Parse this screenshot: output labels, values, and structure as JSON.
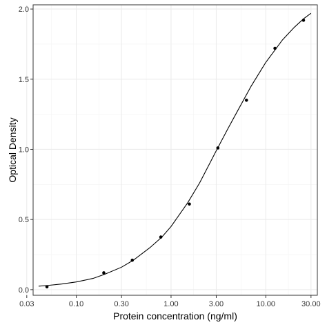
{
  "chart_data": {
    "type": "scatter",
    "xlabel": "Protein concentration (ng/ml)",
    "ylabel": "Optical Density",
    "x_scale": "log",
    "xlim": [
      0.035,
      35
    ],
    "ylim": [
      -0.04,
      2.03
    ],
    "grid": true,
    "x_ticks": [
      {
        "value": 0.03,
        "label": "0.03"
      },
      {
        "value": 0.1,
        "label": "0.10"
      },
      {
        "value": 0.3,
        "label": "0.30"
      },
      {
        "value": 1,
        "label": "1.00"
      },
      {
        "value": 3,
        "label": "3.00"
      },
      {
        "value": 10,
        "label": "10.00"
      },
      {
        "value": 30,
        "label": "30.00"
      }
    ],
    "y_ticks": [
      {
        "value": 0.0,
        "label": "0.0"
      },
      {
        "value": 0.5,
        "label": "0.5"
      },
      {
        "value": 1.0,
        "label": "1.0"
      },
      {
        "value": 1.5,
        "label": "1.5"
      },
      {
        "value": 2.0,
        "label": "2.0"
      }
    ],
    "points": [
      {
        "x": 0.049,
        "y": 0.02
      },
      {
        "x": 0.195,
        "y": 0.12
      },
      {
        "x": 0.39,
        "y": 0.21
      },
      {
        "x": 0.78,
        "y": 0.375
      },
      {
        "x": 1.56,
        "y": 0.61
      },
      {
        "x": 3.12,
        "y": 1.01
      },
      {
        "x": 6.25,
        "y": 1.35
      },
      {
        "x": 12.5,
        "y": 1.72
      },
      {
        "x": 25,
        "y": 1.92
      }
    ],
    "fit_curve": [
      {
        "x": 0.04,
        "y": 0.025
      },
      {
        "x": 0.05,
        "y": 0.03
      },
      {
        "x": 0.07,
        "y": 0.04
      },
      {
        "x": 0.1,
        "y": 0.055
      },
      {
        "x": 0.15,
        "y": 0.08
      },
      {
        "x": 0.2,
        "y": 0.11
      },
      {
        "x": 0.3,
        "y": 0.16
      },
      {
        "x": 0.4,
        "y": 0.21
      },
      {
        "x": 0.6,
        "y": 0.3
      },
      {
        "x": 0.8,
        "y": 0.375
      },
      {
        "x": 1.0,
        "y": 0.45
      },
      {
        "x": 1.5,
        "y": 0.62
      },
      {
        "x": 2.0,
        "y": 0.76
      },
      {
        "x": 3.0,
        "y": 0.99
      },
      {
        "x": 4.0,
        "y": 1.15
      },
      {
        "x": 5.0,
        "y": 1.27
      },
      {
        "x": 7.0,
        "y": 1.45
      },
      {
        "x": 10.0,
        "y": 1.62
      },
      {
        "x": 15.0,
        "y": 1.78
      },
      {
        "x": 20.0,
        "y": 1.87
      },
      {
        "x": 25.0,
        "y": 1.93
      },
      {
        "x": 30.0,
        "y": 1.97
      }
    ]
  }
}
